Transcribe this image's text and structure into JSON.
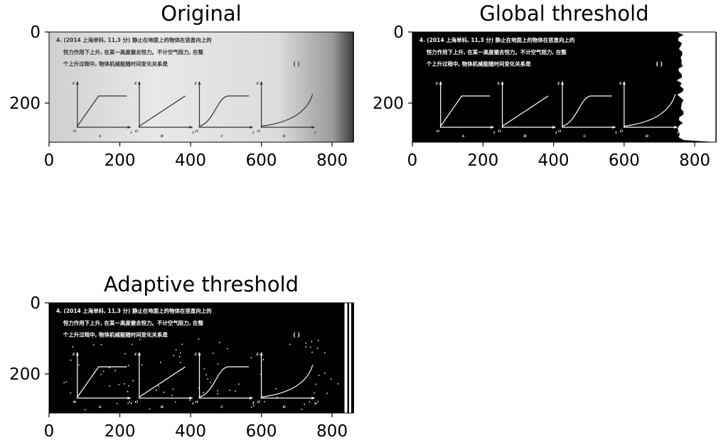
{
  "chart_data": [
    {
      "type": "image",
      "title": "Original",
      "xlim": [
        0,
        860
      ],
      "ylim": [
        310,
        0
      ],
      "xticks": [
        "0",
        "200",
        "400",
        "600",
        "800"
      ],
      "yticks": [
        "0",
        "200"
      ],
      "mode": "original"
    },
    {
      "type": "image",
      "title": "Global threshold",
      "xlim": [
        0,
        860
      ],
      "ylim": [
        310,
        0
      ],
      "xticks": [
        "0",
        "200",
        "400",
        "600",
        "800"
      ],
      "yticks": [
        "0",
        "200"
      ],
      "mode": "global"
    },
    {
      "type": "image",
      "title": "Adaptive threshold",
      "xlim": [
        0,
        860
      ],
      "ylim": [
        310,
        0
      ],
      "xticks": [
        "0",
        "200",
        "400",
        "600",
        "800"
      ],
      "yticks": [
        "0",
        "200"
      ],
      "mode": "adaptive"
    }
  ],
  "image_content": {
    "line1": "4. (2014 上海单科, 11,3 分) 静止在地面上的物体在竖直向上的",
    "line2": "恒力作用下上升, 在某一高度撤去恒力。不计空气阻力, 在整",
    "line3": "个上升过程中, 物体机械能随时间变化关系是",
    "paren": "(       )",
    "axis_e": "E",
    "axis_t": "t",
    "origin": "O",
    "graph_labels": [
      "A",
      "B",
      "C",
      "D"
    ]
  }
}
